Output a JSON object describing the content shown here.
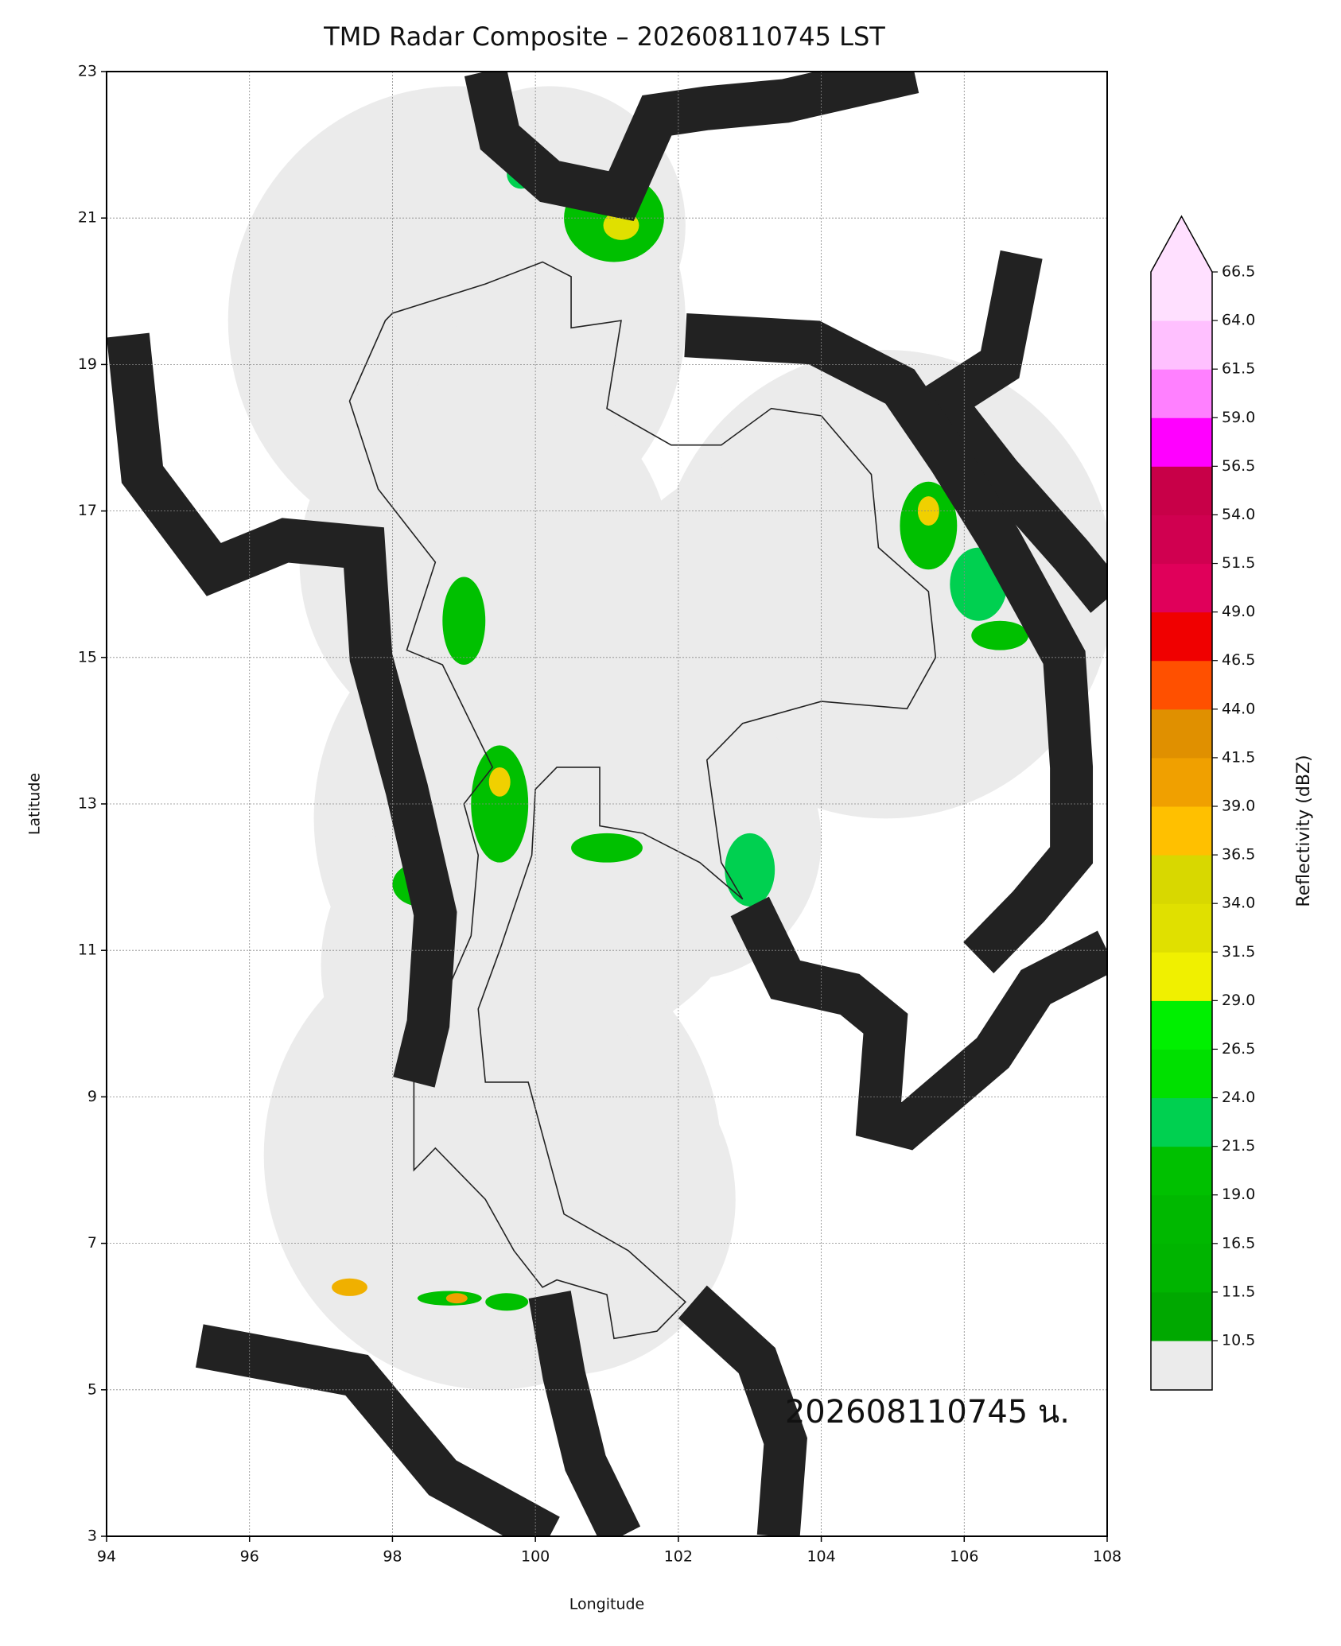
{
  "chart_data": {
    "type": "map",
    "title": "TMD Radar Composite – 202608110745 LST",
    "x_label": "Longitude",
    "y_label": "Latitude",
    "xlim": [
      94,
      108
    ],
    "ylim": [
      3,
      23
    ],
    "xticks": [
      94,
      96,
      98,
      100,
      102,
      104,
      106,
      108
    ],
    "yticks": [
      3,
      5,
      7,
      9,
      11,
      13,
      15,
      17,
      19,
      21,
      23
    ],
    "grid": true,
    "annotation": "202608110745 น.",
    "colorbar": {
      "label": "Reflectivity (dBZ)",
      "ticks": [
        10.5,
        11.5,
        16.5,
        {
          "value": 19.0,
          "label": "19.0"
        },
        21.5,
        {
          "value": 24.0,
          "label": "24.0"
        },
        26.5,
        {
          "value": 29.0,
          "label": "29.0"
        },
        31.5,
        {
          "value": 34.0,
          "label": "34.0"
        },
        36.5,
        {
          "value": 39.0,
          "label": "39.0"
        },
        41.5,
        {
          "value": 44.0,
          "label": "44.0"
        },
        46.5,
        {
          "value": 49.0,
          "label": "49.0"
        },
        51.5,
        {
          "value": 54.0,
          "label": "54.0"
        },
        56.5,
        {
          "value": 59.0,
          "label": "59.0"
        },
        61.5,
        {
          "value": 64.0,
          "label": "64.0"
        },
        66.5
      ],
      "colors": [
        "#00a800",
        "#00b400",
        "#00b800",
        "#00c000",
        "#00d050",
        "#00e000",
        "#00f000",
        "#f0f000",
        "#e0e000",
        "#d8d800",
        "#ffc000",
        "#f0a000",
        "#e09000",
        "#ff5000",
        "#f00000",
        "#e0005a",
        "#d00050",
        "#c80048",
        "#ff00ff",
        "#ff80ff",
        "#ffc0ff",
        "#ffe0ff"
      ],
      "under_color": "#ebebeb",
      "over_color": "#ffe0ff"
    }
  }
}
